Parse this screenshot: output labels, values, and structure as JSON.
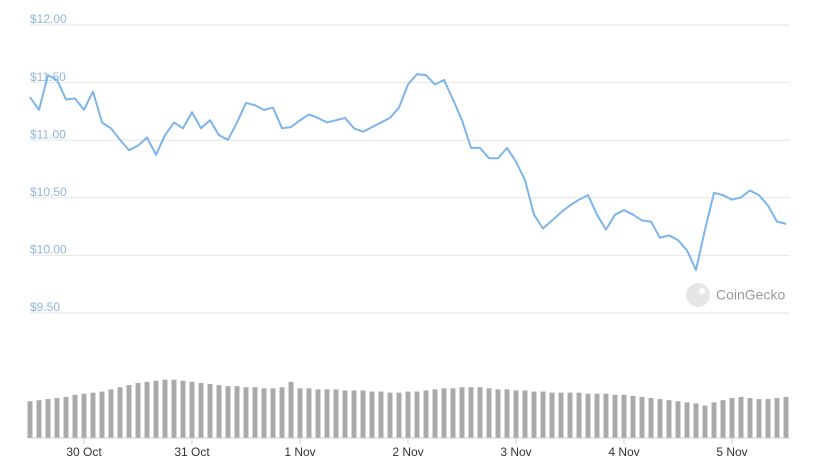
{
  "chart_data": {
    "type": "line",
    "xlim": [
      0,
      84
    ],
    "xticks": [
      {
        "value": 6,
        "label": "30 Oct"
      },
      {
        "value": 18,
        "label": "31 Oct"
      },
      {
        "value": 30,
        "label": "1 Nov"
      },
      {
        "value": 42,
        "label": "2 Nov"
      },
      {
        "value": 54,
        "label": "3 Nov"
      },
      {
        "value": 66,
        "label": "4 Nov"
      },
      {
        "value": 78,
        "label": "5 Nov"
      }
    ],
    "ylim": [
      9.5,
      12
    ],
    "yticks": [
      {
        "value": 12,
        "label": "$12.00"
      },
      {
        "value": 11.5,
        "label": "$11.50"
      },
      {
        "value": 11,
        "label": "$11.00"
      },
      {
        "value": 10.5,
        "label": "$10.50"
      },
      {
        "value": 10,
        "label": "$10.00"
      },
      {
        "value": 9.5,
        "label": "$9.50"
      }
    ],
    "y2lim": [
      0,
      100
    ],
    "grid": true,
    "watermark": "CoinGecko",
    "series": [
      {
        "color": "#7cb5ec",
        "values": [
          11.33,
          11.22,
          11.52,
          11.48,
          11.31,
          11.32,
          11.22,
          11.38,
          11.11,
          11.06,
          10.96,
          10.87,
          10.91,
          10.98,
          10.83,
          11.0,
          11.11,
          11.06,
          11.2,
          11.06,
          11.13,
          11.0,
          10.96,
          11.11,
          11.28,
          11.26,
          11.22,
          11.24,
          11.06,
          11.07,
          11.13,
          11.18,
          11.15,
          11.11,
          11.13,
          11.15,
          11.06,
          11.03,
          11.07,
          11.11,
          11.15,
          11.24,
          11.44,
          11.53,
          11.52,
          11.44,
          11.48,
          11.31,
          11.13,
          10.89,
          10.89,
          10.8,
          10.8,
          10.89,
          10.77,
          10.61,
          10.31,
          10.19,
          10.26,
          10.33,
          10.39,
          10.44,
          10.48,
          10.31,
          10.18,
          10.31,
          10.35,
          10.31,
          10.26,
          10.25,
          10.11,
          10.13,
          10.09,
          10.0,
          9.83,
          10.18,
          10.5,
          10.48,
          10.44,
          10.46,
          10.52,
          10.48,
          10.39,
          10.25,
          10.23
        ]
      },
      {
        "color": "#a9a9a9",
        "axis": "y2",
        "values": [
          34,
          35,
          36,
          37,
          38,
          40,
          41,
          42,
          43,
          45,
          47,
          49,
          51,
          52,
          53,
          54,
          54,
          53,
          52,
          51,
          50,
          49,
          48,
          48,
          47,
          47,
          46,
          46,
          47,
          52,
          46,
          46,
          45,
          45,
          45,
          44,
          44,
          44,
          43,
          43,
          42,
          42,
          43,
          43,
          44,
          45,
          46,
          46,
          47,
          47,
          47,
          46,
          45,
          45,
          44,
          44,
          43,
          43,
          42,
          42,
          42,
          42,
          41,
          41,
          41,
          40,
          40,
          39,
          38,
          37,
          36,
          35,
          34,
          33,
          32,
          30,
          33,
          35,
          37,
          38,
          37,
          36,
          36,
          37,
          38
        ]
      }
    ]
  }
}
